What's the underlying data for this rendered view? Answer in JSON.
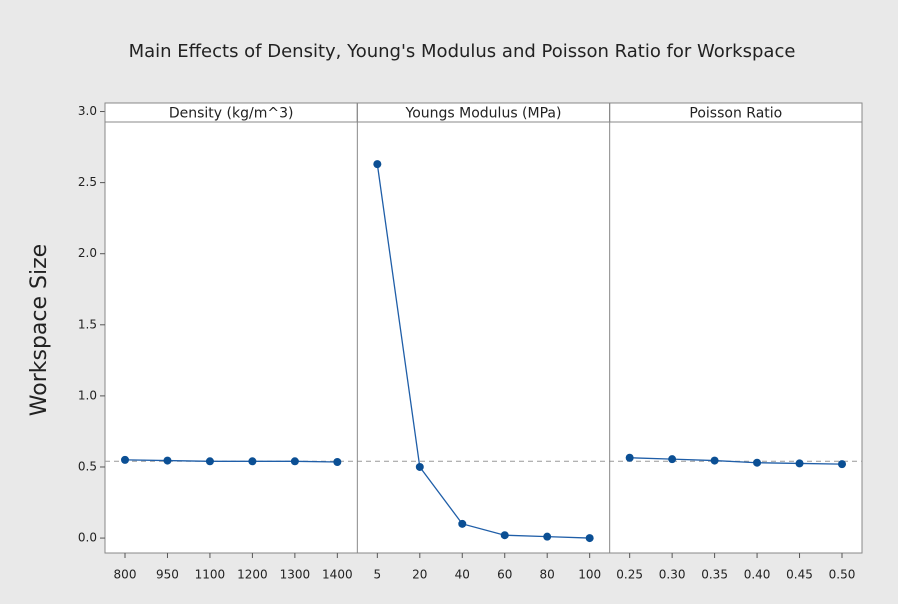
{
  "chart_data": {
    "type": "line",
    "title": "Main Effects of Density, Young's Modulus and Poisson Ratio for Workspace",
    "y_label": "Workspace Size",
    "ylim": [
      -0.105,
      3.06
    ],
    "yticks": [
      {
        "value": 0,
        "label": "0.0"
      },
      0.5,
      {
        "value": 1,
        "label": "1.0"
      },
      1.5,
      {
        "value": 2,
        "label": "2.0"
      },
      2.5,
      {
        "value": 3,
        "label": "3.0"
      }
    ],
    "reference_line": 0.54,
    "color": "#1f5ea8",
    "panels": [
      {
        "title": "Density (kg/m^3)",
        "categories": [
          "800",
          "950",
          "1100",
          "1200",
          "1300",
          "1400"
        ],
        "values": [
          0.55,
          0.545,
          0.54,
          0.54,
          0.54,
          0.535
        ]
      },
      {
        "title": "Youngs Modulus (MPa)",
        "categories": [
          "5",
          "20",
          "40",
          "60",
          "80",
          "100"
        ],
        "values": [
          2.63,
          0.5,
          0.1,
          0.02,
          0.01,
          0.0
        ]
      },
      {
        "title": "Poisson Ratio",
        "categories": [
          "0.25",
          "0.30",
          "0.35",
          "0.40",
          "0.45",
          "0.50"
        ],
        "values": [
          0.565,
          0.555,
          0.545,
          0.53,
          0.525,
          0.52
        ]
      }
    ]
  }
}
